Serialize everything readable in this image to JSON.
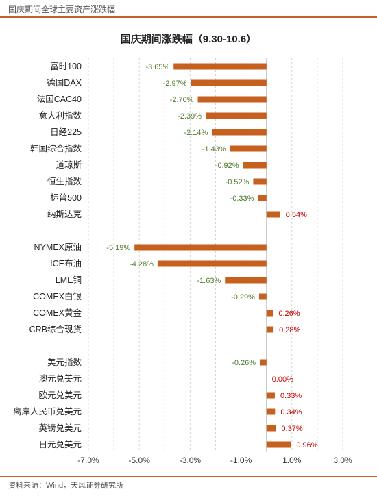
{
  "header": {
    "title": "国庆期间全球主要资产涨跌幅"
  },
  "footer": {
    "source": "资料来源：Wind，天风证券研究所"
  },
  "colors": {
    "bar": "#c5601f",
    "negative_label": "#4a7a2a",
    "positive_label": "#c00000",
    "accent_rule": "#c0622a"
  },
  "chart_data": {
    "type": "bar",
    "orientation": "horizontal",
    "title": "国庆期间涨跌幅（9.30-10.6）",
    "xlim": [
      -7.0,
      3.0
    ],
    "xticks": [
      "-7.0%",
      "-5.0%",
      "-3.0%",
      "-1.0%",
      "1.0%",
      "3.0%"
    ],
    "grid": "vertical-dashed",
    "groups": [
      {
        "categories": [
          "富时100",
          "德国DAX",
          "法国CAC40",
          "意大利指数",
          "日经225",
          "韩国综合指数",
          "道琼斯",
          "恒生指数",
          "标普500",
          "纳斯达克"
        ],
        "values": [
          -3.65,
          -2.97,
          -2.7,
          -2.39,
          -2.14,
          -1.43,
          -0.92,
          -0.52,
          -0.33,
          0.54
        ],
        "labels": [
          "-3.65%",
          "-2.97%",
          "-2.70%",
          "-2.39%",
          "-2.14%",
          "-1.43%",
          "-0.92%",
          "-0.52%",
          "-0.33%",
          "0.54%"
        ]
      },
      {
        "categories": [
          "NYMEX原油",
          "ICE布油",
          "LME铜",
          "COMEX白银",
          "COMEX黄金",
          "CRB综合现货"
        ],
        "values": [
          -5.19,
          -4.28,
          -1.63,
          -0.29,
          0.26,
          0.28
        ],
        "labels": [
          "-5.19%",
          "-4.28%",
          "-1.63%",
          "-0.29%",
          "0.26%",
          "0.28%"
        ]
      },
      {
        "categories": [
          "美元指数",
          "澳元兑美元",
          "欧元兑美元",
          "离岸人民币兑美元",
          "英镑兑美元",
          "日元兑美元"
        ],
        "values": [
          -0.26,
          0.0,
          0.33,
          0.34,
          0.37,
          0.96
        ],
        "labels": [
          "-0.26%",
          "0.00%",
          "0.33%",
          "0.34%",
          "0.37%",
          "0.96%"
        ]
      }
    ]
  }
}
